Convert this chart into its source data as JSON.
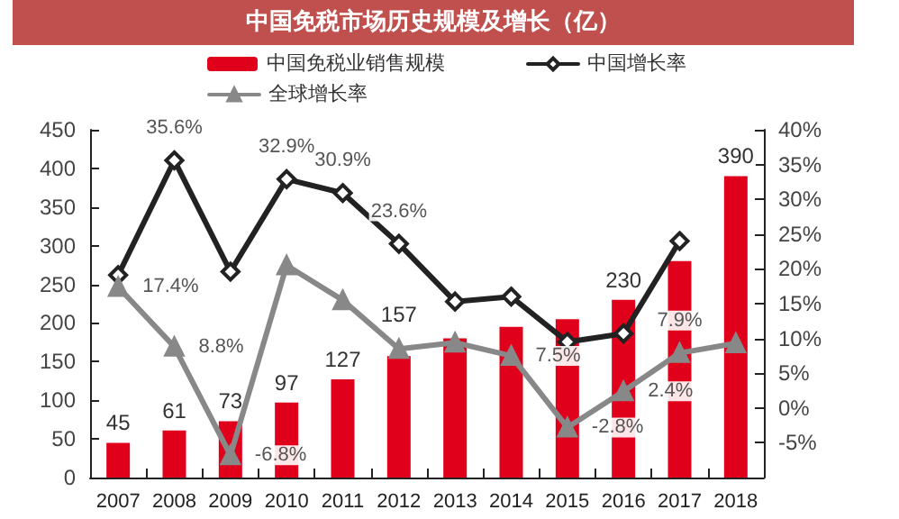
{
  "chart_data": {
    "type": "bar",
    "title": "中国免税市场历史规模及增长（亿）",
    "categories": [
      "2007",
      "2008",
      "2009",
      "2010",
      "2011",
      "2012",
      "2013",
      "2014",
      "2015",
      "2016",
      "2017",
      "2018"
    ],
    "series": [
      {
        "name": "中国免税业销售规模",
        "type": "bar",
        "color": "#e0001b",
        "values": [
          45,
          61,
          73,
          97,
          127,
          157,
          180,
          195,
          205,
          230,
          280,
          390
        ],
        "value_labels": [
          "45",
          "61",
          "73",
          "97",
          "127",
          "157",
          null,
          null,
          null,
          "230",
          null,
          "390"
        ]
      },
      {
        "name": "中国增长率",
        "type": "line",
        "axis": "y2",
        "marker": "diamond",
        "color": "#222222",
        "values": [
          19.1,
          35.6,
          19.6,
          32.9,
          30.9,
          23.6,
          15.3,
          16.0,
          9.5,
          10.7,
          24.0,
          null
        ],
        "value_labels": [
          null,
          "35.6%",
          null,
          "32.9%",
          "30.9%",
          "23.6%",
          null,
          null,
          null,
          null,
          null,
          null
        ]
      },
      {
        "name": "全球增长率",
        "type": "line",
        "axis": "y2",
        "marker": "triangle",
        "color": "#888888",
        "values": [
          17.4,
          8.8,
          -6.8,
          20.5,
          15.5,
          8.5,
          9.4,
          7.5,
          -2.8,
          2.4,
          7.9,
          9.3
        ],
        "value_labels": [
          "17.4%",
          "8.8%",
          "-6.8%",
          null,
          null,
          null,
          null,
          "7.5%",
          "-2.8%",
          "2.4%",
          "7.9%",
          null
        ]
      }
    ],
    "ylim": [
      0,
      450
    ],
    "yticks": [
      0,
      50,
      100,
      150,
      200,
      250,
      300,
      350,
      400,
      450
    ],
    "y2lim": [
      -10,
      40
    ],
    "y2ticks": [
      {
        "value": -10,
        "label": null
      },
      {
        "value": -5,
        "label": "-5%"
      },
      {
        "value": 0,
        "label": "0%"
      },
      {
        "value": 5,
        "label": "5%"
      },
      {
        "value": 10,
        "label": "10%"
      },
      {
        "value": 15,
        "label": "15%"
      },
      {
        "value": 20,
        "label": "20%"
      },
      {
        "value": 25,
        "label": "25%"
      },
      {
        "value": 30,
        "label": "30%"
      },
      {
        "value": 35,
        "label": "35%"
      },
      {
        "value": 40,
        "label": "40%"
      }
    ],
    "legend": "top",
    "grid": false
  }
}
